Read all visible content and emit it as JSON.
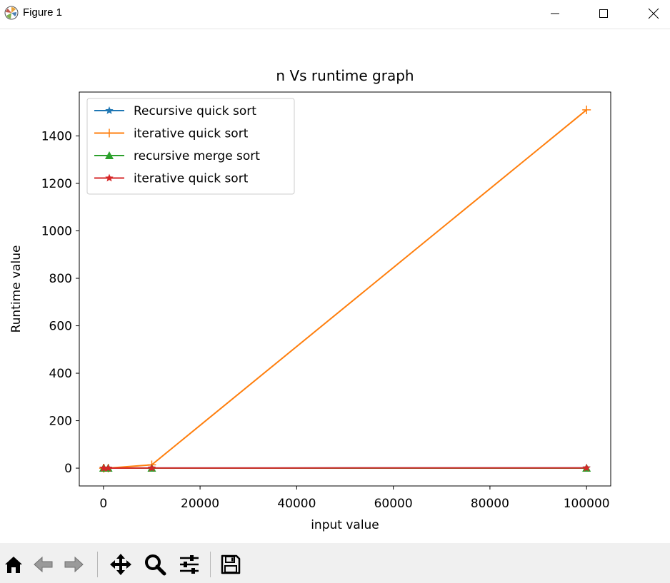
{
  "window": {
    "title": "Figure 1",
    "app_icon": "matplotlib-logo-icon",
    "controls": [
      "minimize-icon",
      "maximize-icon",
      "close-icon"
    ]
  },
  "toolbar": {
    "buttons": [
      "home-icon",
      "back-arrow-icon",
      "forward-arrow-icon",
      "pan-icon",
      "zoom-icon",
      "configure-subplots-icon",
      "save-icon"
    ]
  },
  "chart_data": {
    "type": "line",
    "title": "n Vs runtime graph",
    "xlabel": "input value",
    "ylabel": "Runtime value",
    "xlim": [
      -5000,
      105000
    ],
    "ylim": [
      -75,
      1585
    ],
    "xticks": [
      0,
      20000,
      40000,
      60000,
      80000,
      100000
    ],
    "yticks": [
      0,
      200,
      400,
      600,
      800,
      1000,
      1200,
      1400
    ],
    "x": [
      10,
      100,
      1000,
      10000,
      100000
    ],
    "grid": false,
    "legend_position": "top-left",
    "series": [
      {
        "name": "Recursive quick sort",
        "color": "#1f77b4",
        "marker": "star",
        "values": [
          0,
          0,
          0.1,
          0.5,
          1
        ]
      },
      {
        "name": "iterative quick sort",
        "color": "#ff7f0e",
        "marker": "plus",
        "values": [
          0,
          0,
          0.2,
          14,
          1510
        ]
      },
      {
        "name": "recursive merge sort",
        "color": "#2ca02c",
        "marker": "triangle",
        "values": [
          0,
          0,
          0,
          0,
          0
        ]
      },
      {
        "name": "iterative quick sort",
        "color": "#d62728",
        "marker": "star",
        "values": [
          0,
          0,
          0.1,
          0.5,
          1
        ]
      }
    ]
  }
}
